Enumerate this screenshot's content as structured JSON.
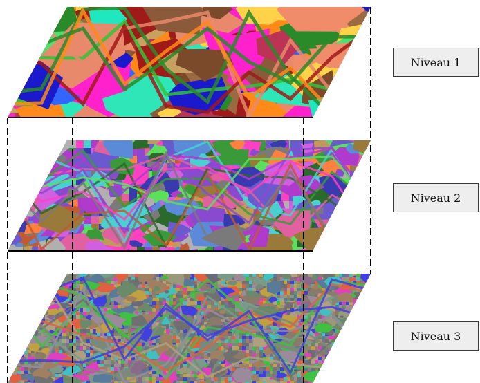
{
  "levels": [
    {
      "label": "Niveau 1",
      "palette": [
        "#f08c6a",
        "#e8896b",
        "#2ee6b8",
        "#1fe8c0",
        "#9b6a42",
        "#8a5a3a",
        "#a01a1a",
        "#2a8a2a",
        "#34c23a",
        "#1a1acc",
        "#3366ff",
        "#ff22cc",
        "#ff8a1a",
        "#c8a060",
        "#50e070",
        "#ffd24a",
        "#bb3355",
        "#7a4a2a"
      ]
    },
    {
      "label": "Niveau 2",
      "palette": [
        "#8a4ad0",
        "#b03acc",
        "#d060e0",
        "#5a8ad8",
        "#ff40c0",
        "#3a9a3a",
        "#7a7a7a",
        "#c05a30",
        "#4ad0d0",
        "#9a7a3a",
        "#e060a0",
        "#5ae05a",
        "#3a3ab0",
        "#ff8040",
        "#c09a5a",
        "#6a5acd",
        "#b0b0b0",
        "#2a6a2a"
      ]
    },
    {
      "label": "Niveau 3",
      "palette": [
        "#7a8a7a",
        "#8a7a6a",
        "#6a6a7a",
        "#9a8a9a",
        "#7a9a8a",
        "#a08060",
        "#6a8a6a",
        "#8a6a8a",
        "#b0a080",
        "#5a7a9a",
        "#9a9a7a",
        "#707070",
        "#e040c0",
        "#40c040",
        "#4040e0",
        "#c0a040",
        "#40c0c0",
        "#e06040"
      ]
    }
  ],
  "colors": {
    "label_background": "#eeeeee",
    "label_border": "#3a3a3a",
    "connector_line": "#000000"
  }
}
